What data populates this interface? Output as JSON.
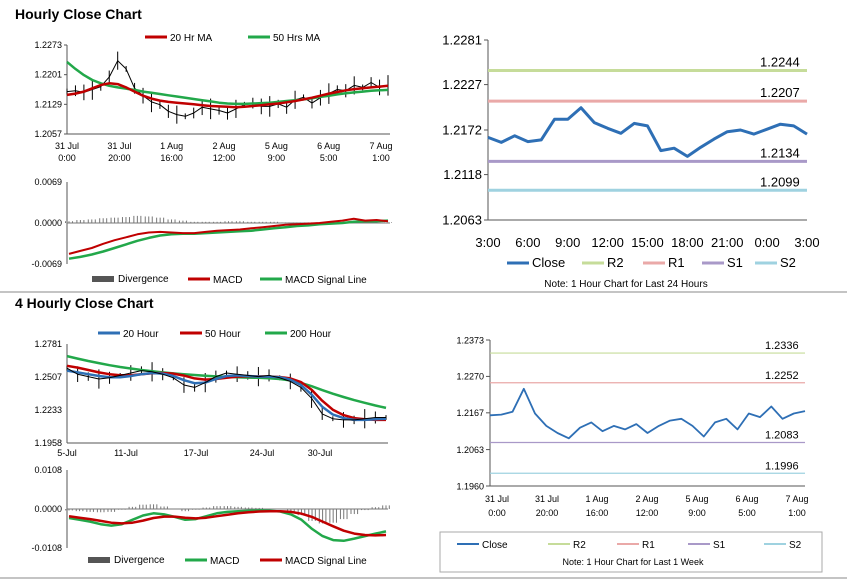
{
  "sections": {
    "hourly_title": "Hourly Close Chart",
    "four_hourly_title": "4 Hourly Close Chart"
  },
  "colors": {
    "ma_red": "#c00000",
    "ma_green": "#22a84a",
    "blue": "#2e6fb5",
    "r2": "#c6dc9a",
    "r1": "#eaa9a8",
    "s1": "#a999c8",
    "s2": "#9fd2e0",
    "divergence": "#777777"
  },
  "chart_data": [
    {
      "id": "hourly_price",
      "type": "line",
      "legend": [
        "20 Hr MA",
        "50 Hrs MA"
      ],
      "yticks": [
        "1.2273",
        "1.2201",
        "1.2129",
        "1.2057"
      ],
      "ylim": [
        1.2057,
        1.2273
      ],
      "xticks": [
        [
          "31 Jul",
          "0:00"
        ],
        [
          "31 Jul",
          "20:00"
        ],
        [
          "1 Aug",
          "16:00"
        ],
        [
          "2 Aug",
          "12:00"
        ],
        [
          "5 Aug",
          "9:00"
        ],
        [
          "6 Aug",
          "5:00"
        ],
        [
          "7 Aug",
          "1:00"
        ]
      ],
      "close": [
        1.216,
        1.2162,
        1.2158,
        1.2165,
        1.2172,
        1.2195,
        1.2235,
        1.2215,
        1.2168,
        1.215,
        1.2135,
        1.2128,
        1.2112,
        1.2104,
        1.21,
        1.2108,
        1.2122,
        1.2118,
        1.2114,
        1.2108,
        1.2118,
        1.2128,
        1.2132,
        1.2124,
        1.2124,
        1.213,
        1.2122,
        1.214,
        1.2146,
        1.2132,
        1.2145,
        1.2155,
        1.2165,
        1.2162,
        1.2175,
        1.217,
        1.2182,
        1.217,
        1.2175
      ],
      "ma20": [
        1.2152,
        1.2155,
        1.216,
        1.2168,
        1.2176,
        1.218,
        1.2178,
        1.217,
        1.216,
        1.215,
        1.2143,
        1.2138,
        1.2135,
        1.2133,
        1.2131,
        1.2129,
        1.2127,
        1.2125,
        1.2124,
        1.2123,
        1.2122,
        1.2123,
        1.2125,
        1.2127,
        1.2129,
        1.2131,
        1.2134,
        1.2137,
        1.2141,
        1.2145,
        1.215,
        1.2155,
        1.2159,
        1.2163,
        1.2166,
        1.2168,
        1.217,
        1.2172,
        1.2174
      ],
      "ma50": [
        1.2232,
        1.2215,
        1.22,
        1.2188,
        1.218,
        1.2174,
        1.217,
        1.2167,
        1.2164,
        1.216,
        1.2157,
        1.2154,
        1.2151,
        1.2148,
        1.2145,
        1.2142,
        1.2139,
        1.2136,
        1.2133,
        1.2131,
        1.213,
        1.213,
        1.2131,
        1.2132,
        1.2133,
        1.2135,
        1.2137,
        1.2139,
        1.2141,
        1.2144,
        1.2147,
        1.215,
        1.2153,
        1.2156,
        1.2158,
        1.216,
        1.2162,
        1.2163,
        1.2164
      ]
    },
    {
      "id": "hourly_macd",
      "type": "line",
      "yticks": [
        "0.0069",
        "0.0000",
        "-0.0069"
      ],
      "ylim": [
        -0.0069,
        0.0069
      ],
      "legend": [
        "Divergence",
        "MACD",
        "MACD Signal Line"
      ],
      "macd": [
        -0.0052,
        -0.0047,
        -0.0042,
        -0.0035,
        -0.0029,
        -0.0024,
        -0.0019,
        -0.0016,
        -0.0015,
        -0.0016,
        -0.0017,
        -0.0017,
        -0.0015,
        -0.0013,
        -0.0012,
        -0.0011,
        -0.0009,
        -0.0007,
        -0.0005,
        -0.0003,
        -0.0002,
        -0.0001,
        0.0,
        0.0002,
        0.0004,
        0.0007,
        0.0004,
        0.0005,
        0.0003
      ],
      "signal": [
        -0.006,
        -0.0057,
        -0.0053,
        -0.0048,
        -0.0042,
        -0.0036,
        -0.003,
        -0.0025,
        -0.0021,
        -0.0019,
        -0.0018,
        -0.0018,
        -0.0017,
        -0.0016,
        -0.0015,
        -0.0014,
        -0.0013,
        -0.0011,
        -0.0009,
        -0.0007,
        -0.0005,
        -0.0004,
        -0.0002,
        -0.0001,
        0.0,
        0.0002,
        0.0003,
        0.0003,
        0.0004
      ],
      "divergence": [
        0.0003,
        0.0005,
        0.0006,
        0.0008,
        0.0009,
        0.001,
        0.0012,
        0.0011,
        0.0009,
        0.0006,
        0.0004,
        0.0002,
        0.0002,
        0.0002,
        0.0003,
        0.0003,
        0.0002,
        0.0002,
        0.0002,
        0.0001,
        0.0001,
        0.0001,
        0.0001,
        0.0001,
        0.0001,
        0.0002,
        0.0001,
        0.0001,
        0.0001
      ]
    },
    {
      "id": "hourly_24h",
      "type": "line",
      "yticks": [
        "1.2281",
        "1.2227",
        "1.2172",
        "1.2118",
        "1.2063"
      ],
      "ylim": [
        1.2063,
        1.2281
      ],
      "xticks": [
        "3:00",
        "6:00",
        "9:00",
        "12:00",
        "15:00",
        "18:00",
        "21:00",
        "0:00",
        "3:00"
      ],
      "close": [
        1.2163,
        1.2157,
        1.2165,
        1.2158,
        1.216,
        1.2185,
        1.2185,
        1.2199,
        1.2181,
        1.2174,
        1.2168,
        1.218,
        1.2177,
        1.2147,
        1.215,
        1.214,
        1.2151,
        1.2161,
        1.217,
        1.2172,
        1.2167,
        1.2173,
        1.2179,
        1.2177,
        1.2167
      ],
      "levels": [
        {
          "name": "R2",
          "value": 1.2244,
          "label": "1.2244"
        },
        {
          "name": "R1",
          "value": 1.2207,
          "label": "1.2207"
        },
        {
          "name": "S1",
          "value": 1.2134,
          "label": "1.2134"
        },
        {
          "name": "S2",
          "value": 1.2099,
          "label": "1.2099"
        }
      ],
      "legend": [
        "Close",
        "R2",
        "R1",
        "S1",
        "S2"
      ],
      "note": "Note: 1 Hour Chart for Last 24 Hours"
    },
    {
      "id": "four_hourly_price",
      "type": "line",
      "legend": [
        "20 Hour",
        "50 Hour",
        "200 Hour"
      ],
      "yticks": [
        "1.2781",
        "1.2507",
        "1.2233",
        "1.1958"
      ],
      "ylim": [
        1.1958,
        1.2781
      ],
      "xticks": [
        "5-Jul",
        "11-Jul",
        "17-Jul",
        "24-Jul",
        "30-Jul"
      ],
      "close": [
        1.258,
        1.253,
        1.251,
        1.249,
        1.25,
        1.252,
        1.254,
        1.256,
        1.255,
        1.253,
        1.25,
        1.244,
        1.242,
        1.246,
        1.251,
        1.254,
        1.253,
        1.252,
        1.251,
        1.252,
        1.25,
        1.247,
        1.242,
        1.233,
        1.22,
        1.216,
        1.215,
        1.215,
        1.216,
        1.217,
        1.217
      ],
      "ma20": [
        1.256,
        1.2545,
        1.253,
        1.2515,
        1.2505,
        1.2505,
        1.2515,
        1.253,
        1.254,
        1.2535,
        1.2515,
        1.248,
        1.2455,
        1.246,
        1.249,
        1.2515,
        1.252,
        1.2515,
        1.251,
        1.251,
        1.2505,
        1.2485,
        1.244,
        1.236,
        1.226,
        1.2195,
        1.2165,
        1.215,
        1.215,
        1.2155,
        1.216
      ],
      "ma50": [
        1.26,
        1.2585,
        1.2565,
        1.2545,
        1.253,
        1.2522,
        1.2522,
        1.253,
        1.2538,
        1.254,
        1.2535,
        1.2518,
        1.2495,
        1.2485,
        1.249,
        1.25,
        1.251,
        1.2513,
        1.2512,
        1.251,
        1.2507,
        1.2495,
        1.2465,
        1.24,
        1.231,
        1.2235,
        1.219,
        1.2165,
        1.2155,
        1.215,
        1.215
      ],
      "ma200": [
        1.268,
        1.266,
        1.264,
        1.2622,
        1.2605,
        1.259,
        1.2577,
        1.2565,
        1.2555,
        1.2545,
        1.2537,
        1.253,
        1.2523,
        1.2517,
        1.2512,
        1.2508,
        1.2505,
        1.2502,
        1.25,
        1.2497,
        1.249,
        1.2478,
        1.2458,
        1.243,
        1.2398,
        1.2368,
        1.234,
        1.2315,
        1.2292,
        1.227,
        1.225
      ]
    },
    {
      "id": "four_hourly_macd",
      "type": "line",
      "yticks": [
        "0.0108",
        "0.0000",
        "-0.0108"
      ],
      "ylim": [
        -0.0108,
        0.0108
      ],
      "legend": [
        "Divergence",
        "MACD",
        "MACD Signal Line"
      ],
      "macd": [
        -0.0025,
        -0.003,
        -0.0035,
        -0.0042,
        -0.0046,
        -0.0042,
        -0.003,
        -0.0018,
        -0.0012,
        -0.0015,
        -0.0022,
        -0.003,
        -0.0028,
        -0.002,
        -0.0012,
        -0.0008,
        -0.0006,
        -0.0005,
        -0.0004,
        -0.0005,
        -0.0007,
        -0.0015,
        -0.003,
        -0.0055,
        -0.0075,
        -0.0086,
        -0.0088,
        -0.0082,
        -0.0075,
        -0.0068,
        -0.0062
      ],
      "signal": [
        -0.002,
        -0.0024,
        -0.0028,
        -0.0033,
        -0.0038,
        -0.004,
        -0.0038,
        -0.0032,
        -0.0025,
        -0.0021,
        -0.0021,
        -0.0024,
        -0.0026,
        -0.0024,
        -0.002,
        -0.0016,
        -0.0012,
        -0.0009,
        -0.0007,
        -0.0006,
        -0.0006,
        -0.0008,
        -0.0013,
        -0.0022,
        -0.0035,
        -0.0048,
        -0.006,
        -0.0068,
        -0.0072,
        -0.0073,
        -0.0072
      ],
      "divergence": [
        -0.0004,
        -0.0006,
        -0.0008,
        -0.0009,
        -0.0008,
        -0.0002,
        0.0006,
        0.0012,
        0.0013,
        0.0007,
        -0.0001,
        -0.0006,
        -0.0002,
        0.0004,
        0.0008,
        0.0008,
        0.0006,
        0.0004,
        0.0003,
        0.0001,
        -0.0001,
        -0.0007,
        -0.0017,
        -0.0033,
        -0.004,
        -0.0038,
        -0.0028,
        -0.0014,
        -0.0003,
        0.0005,
        0.001
      ]
    },
    {
      "id": "weekly",
      "type": "line",
      "yticks": [
        "1.2373",
        "1.2270",
        "1.2167",
        "1.2063",
        "1.1960"
      ],
      "ylim": [
        1.196,
        1.2373
      ],
      "xticks": [
        [
          "31 Jul",
          "0:00"
        ],
        [
          "31 Jul",
          "20:00"
        ],
        [
          "1 Aug",
          "16:00"
        ],
        [
          "2 Aug",
          "12:00"
        ],
        [
          "5 Aug",
          "9:00"
        ],
        [
          "6 Aug",
          "5:00"
        ],
        [
          "7 Aug",
          "1:00"
        ]
      ],
      "close": [
        1.216,
        1.2162,
        1.217,
        1.2235,
        1.2165,
        1.213,
        1.211,
        1.2095,
        1.2125,
        1.214,
        1.2115,
        1.213,
        1.212,
        1.2135,
        1.211,
        1.213,
        1.2145,
        1.215,
        1.213,
        1.21,
        1.214,
        1.215,
        1.212,
        1.2165,
        1.2155,
        1.2185,
        1.215,
        1.2165,
        1.2172
      ],
      "levels": [
        {
          "name": "R2",
          "value": 1.2336,
          "label": "1.2336"
        },
        {
          "name": "R1",
          "value": 1.2252,
          "label": "1.2252"
        },
        {
          "name": "S1",
          "value": 1.2083,
          "label": "1.2083"
        },
        {
          "name": "S2",
          "value": 1.1996,
          "label": "1.1996"
        }
      ],
      "legend": [
        "Close",
        "R2",
        "R1",
        "S1",
        "S2"
      ],
      "note": "Note: 1 Hour Chart for Last 1 Week"
    }
  ]
}
